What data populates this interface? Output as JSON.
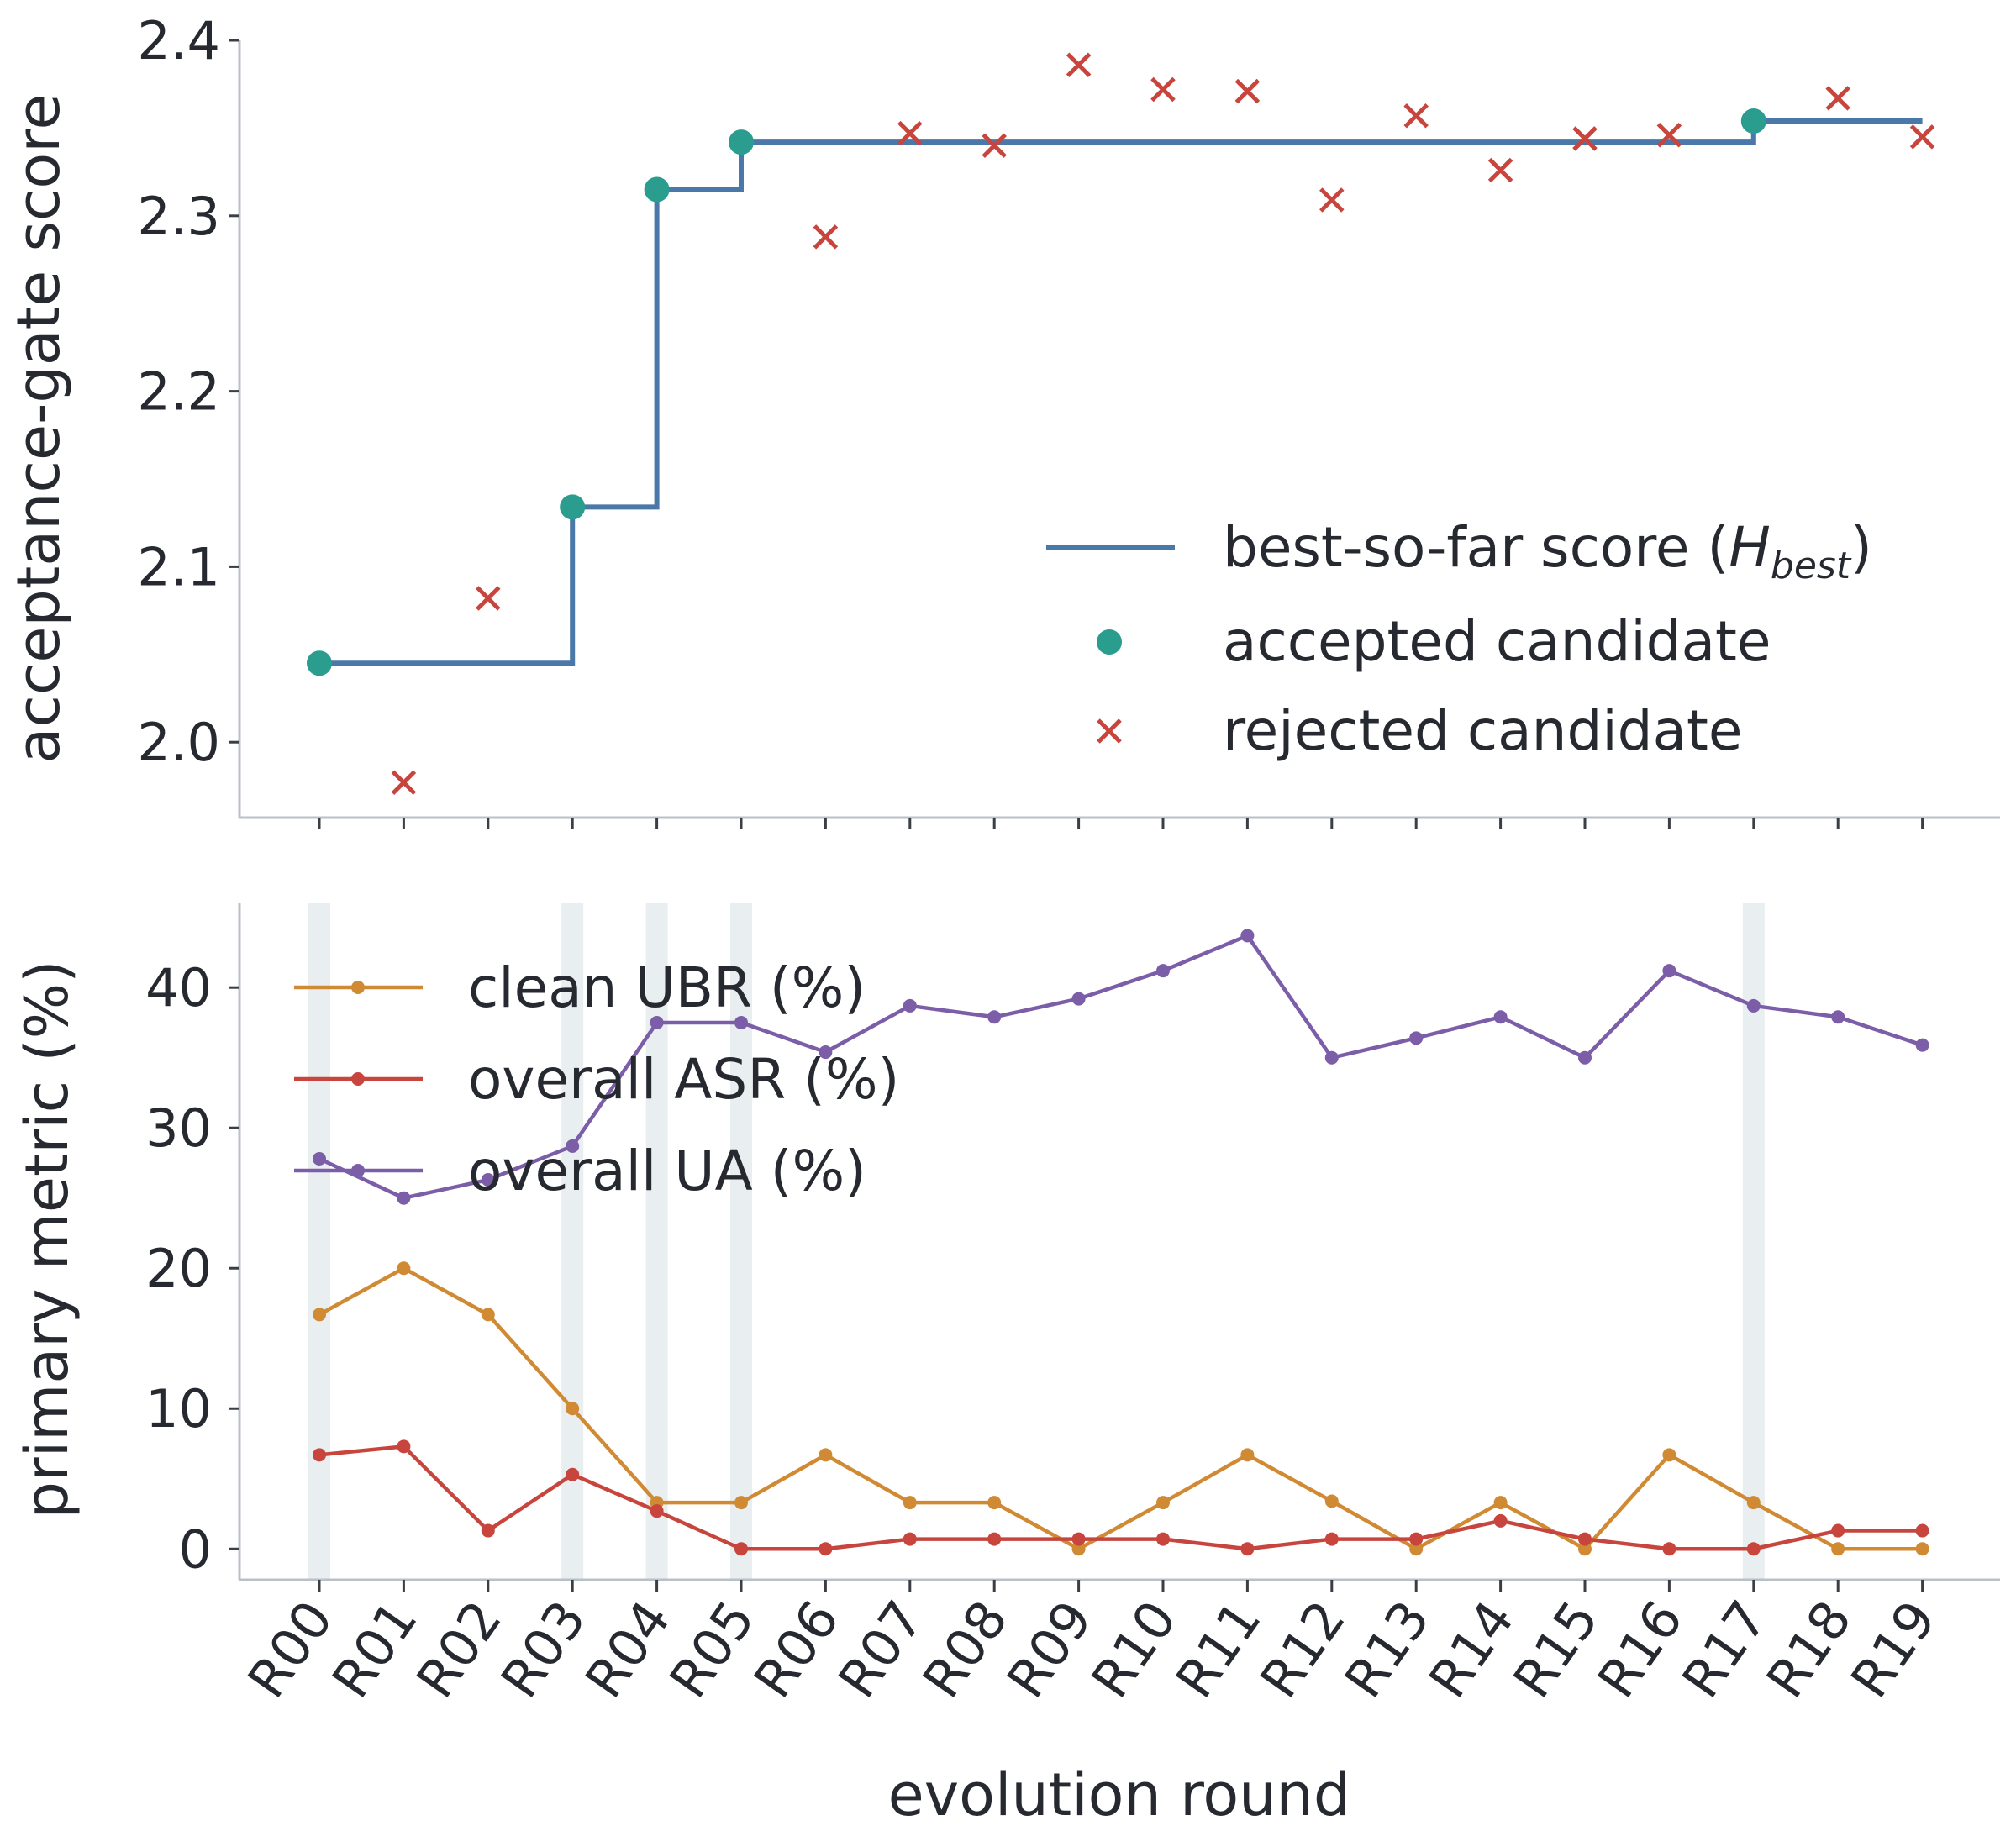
{
  "colors": {
    "best": "#4a78a8",
    "accepted": "#2a9d8f",
    "rejected": "#c8453e",
    "ubr": "#d08a34",
    "asr": "#c8453e",
    "ua": "#7b5ea7",
    "highlight": "#e9eef0"
  },
  "chart_data": [
    {
      "type": "line",
      "ylabel": "acceptance-gate score",
      "xlabel": "",
      "ylim": [
        1.957,
        2.4
      ],
      "yticks": [
        2.0,
        2.1,
        2.2,
        2.3,
        2.4
      ],
      "yticklabels": [
        "2.0",
        "2.1",
        "2.2",
        "2.3",
        "2.4"
      ],
      "categories": [
        "R00",
        "R01",
        "R02",
        "R03",
        "R04",
        "R05",
        "R06",
        "R07",
        "R08",
        "R09",
        "R10",
        "R11",
        "R12",
        "R13",
        "R14",
        "R15",
        "R16",
        "R17",
        "R18",
        "R19"
      ],
      "legend_position": "lower-right",
      "series": [
        {
          "name": "best-so-far score (",
          "legend_math": "H",
          "legend_sub": "best",
          "legend_suffix": ")",
          "kind": "step",
          "values": [
            2.045,
            2.045,
            2.045,
            2.134,
            2.315,
            2.342,
            2.342,
            2.342,
            2.342,
            2.342,
            2.342,
            2.342,
            2.342,
            2.342,
            2.342,
            2.342,
            2.342,
            2.354,
            2.354,
            2.354
          ]
        },
        {
          "name": "accepted candidate",
          "kind": "scatter-dot",
          "points": [
            {
              "x": "R00",
              "y": 2.045
            },
            {
              "x": "R03",
              "y": 2.134
            },
            {
              "x": "R04",
              "y": 2.315
            },
            {
              "x": "R05",
              "y": 2.342
            },
            {
              "x": "R17",
              "y": 2.354
            }
          ]
        },
        {
          "name": "rejected candidate",
          "kind": "scatter-x",
          "points": [
            {
              "x": "R01",
              "y": 1.977
            },
            {
              "x": "R02",
              "y": 2.082
            },
            {
              "x": "R06",
              "y": 2.288
            },
            {
              "x": "R07",
              "y": 2.347
            },
            {
              "x": "R08",
              "y": 2.34
            },
            {
              "x": "R09",
              "y": 2.386
            },
            {
              "x": "R10",
              "y": 2.372
            },
            {
              "x": "R11",
              "y": 2.371
            },
            {
              "x": "R12",
              "y": 2.309
            },
            {
              "x": "R13",
              "y": 2.357
            },
            {
              "x": "R14",
              "y": 2.326
            },
            {
              "x": "R15",
              "y": 2.344
            },
            {
              "x": "R16",
              "y": 2.346
            },
            {
              "x": "R18",
              "y": 2.367
            },
            {
              "x": "R19",
              "y": 2.345
            }
          ]
        }
      ]
    },
    {
      "type": "line",
      "ylabel": "primary metric (%)",
      "xlabel": "evolution round",
      "ylim": [
        -2.2,
        46
      ],
      "yticks": [
        0,
        10,
        20,
        30,
        40
      ],
      "yticklabels": [
        "0",
        "10",
        "20",
        "30",
        "40"
      ],
      "categories": [
        "R00",
        "R01",
        "R02",
        "R03",
        "R04",
        "R05",
        "R06",
        "R07",
        "R08",
        "R09",
        "R10",
        "R11",
        "R12",
        "R13",
        "R14",
        "R15",
        "R16",
        "R17",
        "R18",
        "R19"
      ],
      "highlighted_rounds": [
        "R00",
        "R03",
        "R04",
        "R05",
        "R17"
      ],
      "legend_position": "upper-left",
      "series": [
        {
          "name": "clean UBR (%)",
          "color_key": "ubr",
          "values": [
            16.7,
            20.0,
            16.7,
            10.0,
            3.3,
            3.3,
            6.7,
            3.3,
            3.3,
            0.0,
            3.3,
            6.7,
            3.4,
            0.0,
            3.3,
            0.0,
            6.7,
            3.3,
            0.0,
            0.0
          ]
        },
        {
          "name": "overall ASR (%)",
          "color_key": "asr",
          "values": [
            6.7,
            7.3,
            1.3,
            5.3,
            2.7,
            0.0,
            0.0,
            0.7,
            0.7,
            0.7,
            0.7,
            0.0,
            0.7,
            0.7,
            2.0,
            0.7,
            0.0,
            0.0,
            1.3,
            1.3
          ]
        },
        {
          "name": "overall UA (%)",
          "color_key": "ua",
          "values": [
            27.8,
            25.0,
            26.3,
            28.7,
            37.5,
            37.5,
            35.4,
            38.7,
            37.9,
            39.2,
            41.2,
            43.7,
            35.0,
            36.4,
            37.9,
            35.0,
            41.2,
            38.7,
            37.9,
            35.9
          ]
        }
      ]
    }
  ]
}
